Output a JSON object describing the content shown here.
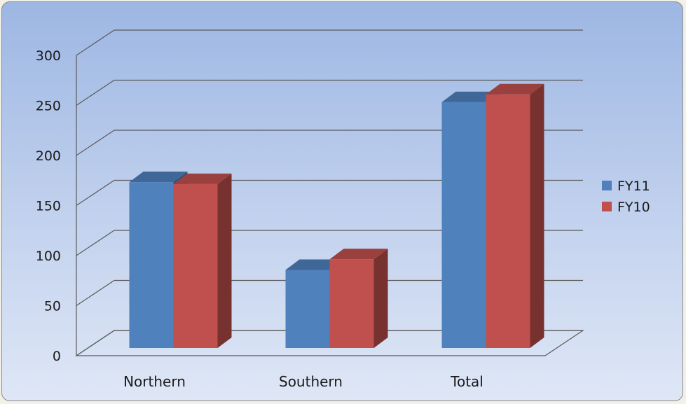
{
  "chart_data": {
    "type": "bar",
    "style": "3d-clustered-column",
    "categories": [
      "Northern",
      "Southern",
      "Total"
    ],
    "series": [
      {
        "name": "FY11",
        "values": [
          170,
          80,
          252
        ],
        "color": "#4f81bd"
      },
      {
        "name": "FY10",
        "values": [
          168,
          91,
          260
        ],
        "color": "#c0504d"
      }
    ],
    "title": "",
    "xlabel": "",
    "ylabel": "",
    "ylim": [
      0,
      300
    ],
    "yticks": [
      0,
      50,
      100,
      150,
      200,
      250,
      300
    ],
    "grid": true,
    "legend_position": "right"
  },
  "colors": {
    "background_top": "#9db7e3",
    "background_bottom": "#dfe7f6",
    "gridline": "#5a5a5a"
  }
}
